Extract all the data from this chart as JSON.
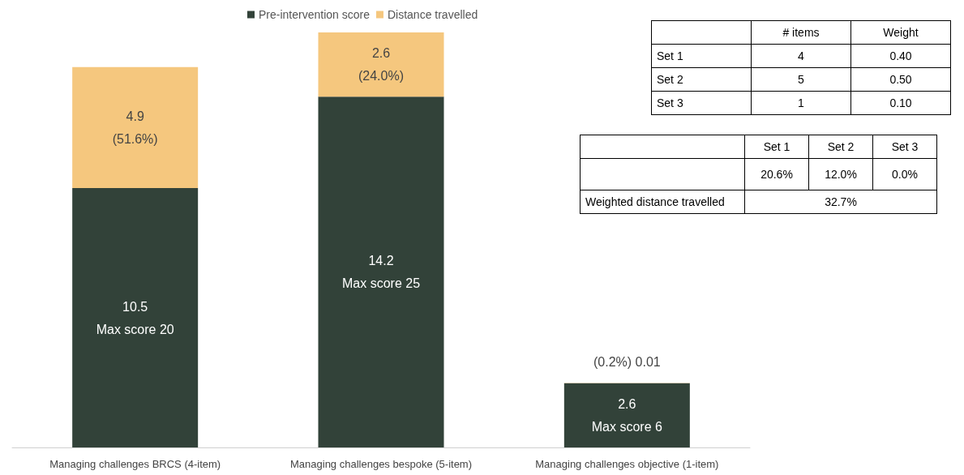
{
  "chart_data": [
    {
      "type": "bar",
      "stacked": true,
      "legend": "top",
      "grid": false,
      "categories": [
        "Managing challenges BRCS (4-item)",
        "Managing challenges bespoke (5-item)",
        "Managing challenges objective (1-item)"
      ],
      "series": [
        {
          "name": "Pre-intervention score",
          "color": "#324239",
          "values": [
            10.5,
            14.2,
            2.6
          ],
          "value_labels": [
            "10.5\nMax score 20",
            "14.2\nMax score 25",
            "2.6\nMax score 6"
          ]
        },
        {
          "name": "Distance travelled",
          "color": "#f5c77e",
          "values": [
            4.9,
            2.6,
            0.01
          ],
          "value_labels": [
            "4.9\n(51.6%)",
            "2.6\n(24.0%)",
            "(0.2%) 0.01"
          ]
        }
      ]
    },
    {
      "type": "other",
      "categories": [
        "# items",
        "Weight"
      ],
      "y_categories": [
        "Set 1",
        "Set 2",
        "Set 3"
      ],
      "cell_labels": [
        [
          "4",
          "0.40"
        ],
        [
          "5",
          "0.50"
        ],
        [
          "1",
          "0.10"
        ]
      ]
    },
    {
      "type": "other",
      "categories": [
        "Set 1",
        "Set 2",
        "Set 3"
      ],
      "y_categories": [
        null,
        "Weighted distance travelled"
      ],
      "cell_labels": [
        [
          "20.6%",
          "12.0%",
          "0.0%"
        ],
        [
          "32.7%"
        ]
      ]
    }
  ]
}
